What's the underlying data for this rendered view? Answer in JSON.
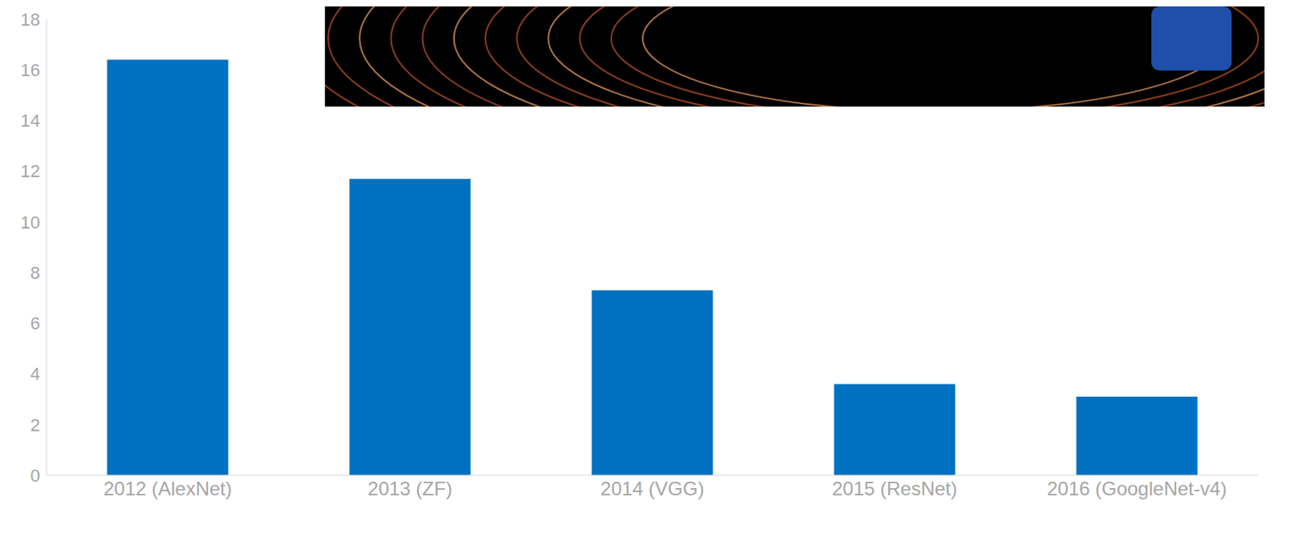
{
  "chart_data": {
    "type": "bar",
    "categories": [
      "2012 (AlexNet)",
      "2013 (ZF)",
      "2014 (VGG)",
      "2015 (ResNet)",
      "2016 (GoogleNet-v4)"
    ],
    "values": [
      16.4,
      11.7,
      7.3,
      3.6,
      3.1
    ],
    "color": "#0070c0",
    "ylim": [
      0,
      18
    ],
    "yticks": [
      0,
      2,
      4,
      6,
      8,
      10,
      12,
      14,
      16,
      18
    ],
    "grid": false
  }
}
